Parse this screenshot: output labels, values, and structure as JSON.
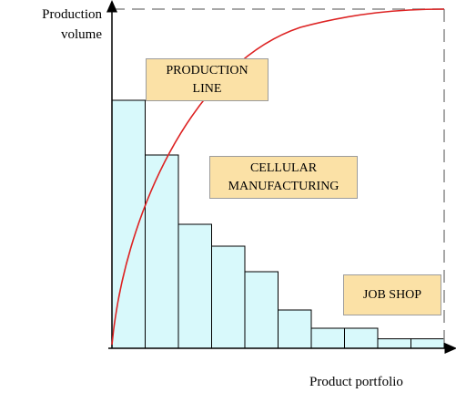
{
  "chart_data": {
    "type": "bar",
    "ylabel": "Production\nvolume",
    "xlabel": "Product portfolio",
    "bar_values": [
      68,
      53,
      34,
      28,
      21,
      10.5,
      5.5,
      5.5,
      2.6,
      2.6
    ],
    "curve": {
      "shape": "concave-saturating",
      "color": "#dd2222"
    },
    "bar_fill": "#d8f9fb",
    "boxes": [
      {
        "label": "PRODUCTION\nLINE"
      },
      {
        "label": "CELLULAR\nMANUFACTURING"
      },
      {
        "label": "JOB SHOP"
      }
    ]
  }
}
